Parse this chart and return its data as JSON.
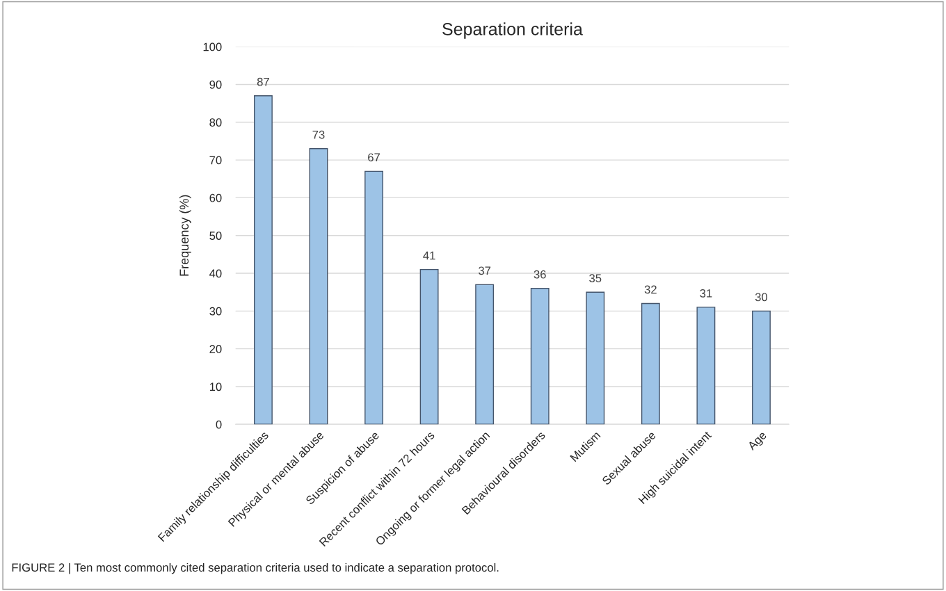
{
  "chart_data": {
    "type": "bar",
    "title": "Separation criteria",
    "ylabel": "Frequency (%)",
    "categories": [
      "Family relationship difficulties",
      "Physical or mental abuse",
      "Suspicion of abuse",
      "Recent conflict within 72 hours",
      "Ongoing or former legal action",
      "Behavioural disorders",
      "Mutism",
      "Sexual abuse",
      "High suicidal intent",
      "Age"
    ],
    "values": [
      87,
      73,
      67,
      41,
      37,
      36,
      35,
      32,
      31,
      30
    ],
    "color": "#9dc3e6",
    "ylim": [
      0,
      100
    ],
    "yticks": [
      0,
      10,
      20,
      30,
      40,
      50,
      60,
      70,
      80,
      90,
      100
    ],
    "grid": "y",
    "data_labels": true,
    "annotations": [
      "FIGURE 2 | Ten most commonly cited separation criteria used to indicate a separation protocol."
    ]
  }
}
